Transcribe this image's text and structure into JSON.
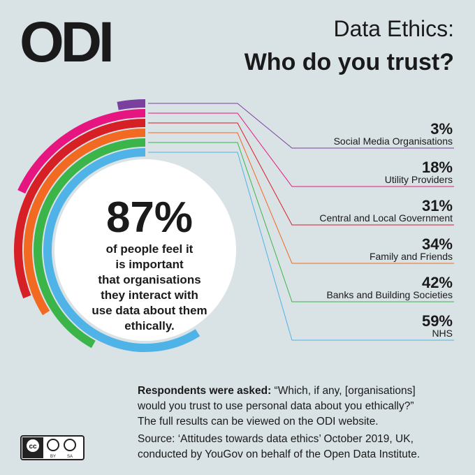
{
  "logo": "ODI",
  "chart_data": {
    "type": "radial",
    "title": "Data Ethics:",
    "subtitle": "Who do you trust?",
    "categories": [
      "Social Media Organisations",
      "Utility Providers",
      "Central and Local Government",
      "Family and Friends",
      "Banks and Building Societies",
      "NHS"
    ],
    "values": [
      3,
      18,
      31,
      34,
      42,
      59
    ],
    "value_labels": [
      "3%",
      "18%",
      "31%",
      "34%",
      "42%",
      "59%"
    ],
    "colors": [
      "#7b3fa0",
      "#e6157f",
      "#d71f26",
      "#f26a21",
      "#3bb54a",
      "#4fb3e8"
    ],
    "ylim": [
      0,
      100
    ]
  },
  "headline": {
    "value": "87%",
    "lines": [
      "of people feel it",
      "is important",
      "that organisations",
      "they interact with",
      "use data about them",
      "ethically."
    ]
  },
  "footnote": {
    "lead": "Respondents were asked:",
    "lines": [
      "“Which, if any, [organisations]",
      "would you trust to use personal data about you ethically?”",
      "The full results can be viewed on the ODI website."
    ],
    "source": [
      "Source: ‘Attitudes towards data ethics’ October 2019, UK,",
      "conducted by YouGov on behalf of the Open Data Institute."
    ]
  },
  "license": {
    "badge": "cc",
    "by": "BY",
    "sa": "SA"
  }
}
